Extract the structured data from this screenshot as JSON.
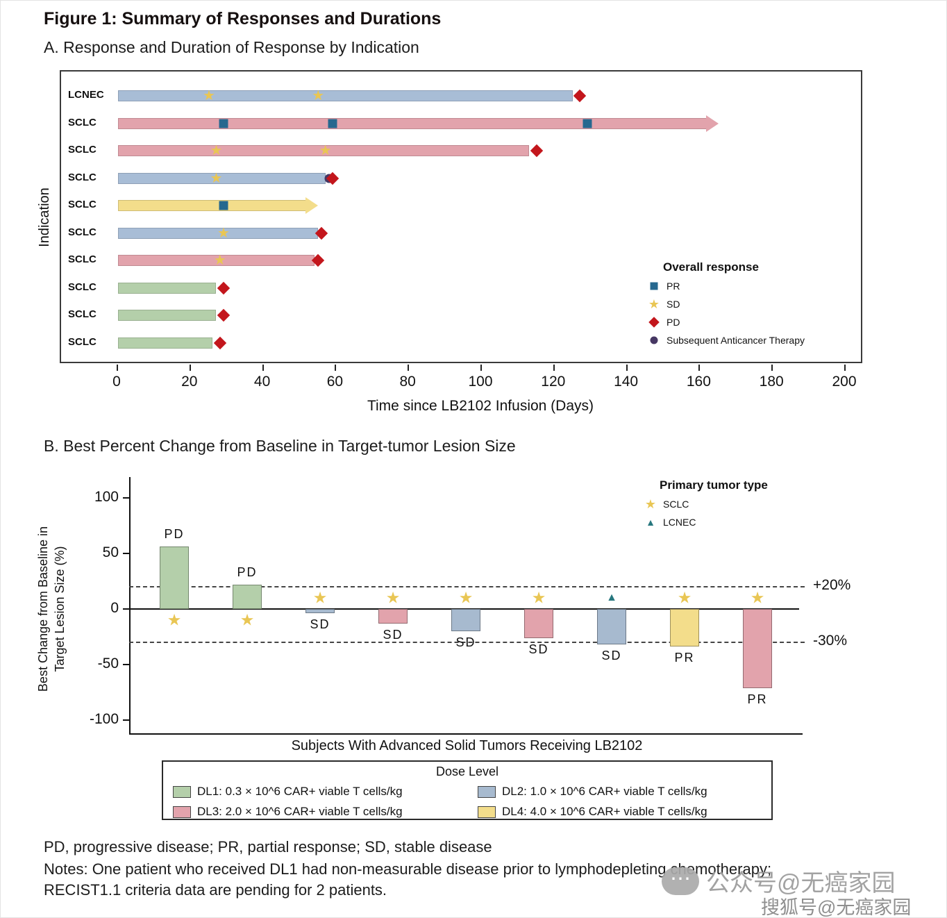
{
  "figure_title": "Figure 1: Summary of Responses and Durations",
  "chart_data": [
    {
      "type": "swimmer",
      "title": "A. Response and Duration of Response by Indication",
      "xlabel": "Time since LB2102 Infusion (Days)",
      "ylabel": "Indication",
      "xlim": [
        0,
        200
      ],
      "xticks": [
        0,
        20,
        40,
        60,
        80,
        100,
        120,
        140,
        160,
        180,
        200
      ],
      "legend_title": "Overall response",
      "legend": [
        {
          "label": "PR",
          "marker": "square",
          "color": "#26688f"
        },
        {
          "label": "SD",
          "marker": "star",
          "color": "#e9c654"
        },
        {
          "label": "PD",
          "marker": "diamond",
          "color": "#c3161c"
        },
        {
          "label": "Subsequent Anticancer Therapy",
          "marker": "circle",
          "color": "#463763"
        }
      ],
      "rows": [
        {
          "indication": "LCNEC",
          "duration": 125,
          "ongoing": false,
          "bar_color": "#a8bdd6",
          "events": [
            {
              "type": "SD",
              "day": 25
            },
            {
              "type": "SD",
              "day": 55
            },
            {
              "type": "PD",
              "day": 127
            }
          ]
        },
        {
          "indication": "SCLC",
          "duration": 162,
          "ongoing": true,
          "bar_color": "#e2a3ac",
          "events": [
            {
              "type": "PR",
              "day": 29
            },
            {
              "type": "PR",
              "day": 59
            },
            {
              "type": "PR",
              "day": 129
            }
          ]
        },
        {
          "indication": "SCLC",
          "duration": 113,
          "ongoing": false,
          "bar_color": "#e2a3ac",
          "events": [
            {
              "type": "SD",
              "day": 27
            },
            {
              "type": "SD",
              "day": 57
            },
            {
              "type": "PD",
              "day": 115
            }
          ]
        },
        {
          "indication": "SCLC",
          "duration": 57,
          "ongoing": false,
          "bar_color": "#a8bdd6",
          "events": [
            {
              "type": "SD",
              "day": 27
            },
            {
              "type": "SACT",
              "day": 58
            },
            {
              "type": "PD",
              "day": 59
            }
          ]
        },
        {
          "indication": "SCLC",
          "duration": 52,
          "ongoing": true,
          "bar_color": "#f3dd8b",
          "events": [
            {
              "type": "PR",
              "day": 29
            }
          ]
        },
        {
          "indication": "SCLC",
          "duration": 55,
          "ongoing": false,
          "bar_color": "#a8bdd6",
          "events": [
            {
              "type": "SD",
              "day": 29
            },
            {
              "type": "PD",
              "day": 56
            }
          ]
        },
        {
          "indication": "SCLC",
          "duration": 54,
          "ongoing": false,
          "bar_color": "#e2a3ac",
          "events": [
            {
              "type": "SD",
              "day": 28
            },
            {
              "type": "PD",
              "day": 55
            }
          ]
        },
        {
          "indication": "SCLC",
          "duration": 27,
          "ongoing": false,
          "bar_color": "#b4cfaa",
          "events": [
            {
              "type": "PD",
              "day": 29
            }
          ]
        },
        {
          "indication": "SCLC",
          "duration": 27,
          "ongoing": false,
          "bar_color": "#b4cfaa",
          "events": [
            {
              "type": "PD",
              "day": 29
            }
          ]
        },
        {
          "indication": "SCLC",
          "duration": 26,
          "ongoing": false,
          "bar_color": "#b4cfaa",
          "events": [
            {
              "type": "PD",
              "day": 28
            }
          ]
        }
      ]
    },
    {
      "type": "bar",
      "title": "B. Best Percent Change from Baseline in Target-tumor Lesion Size",
      "xlabel": "Subjects With Advanced Solid Tumors Receiving LB2102",
      "ylabel": "Best Change from Baseline in Target Lesion Size (%)",
      "ylim": [
        -100,
        100
      ],
      "yticks": [
        100,
        50,
        0,
        -50,
        -100
      ],
      "grid": false,
      "reference_lines": [
        {
          "value": 20,
          "label": "+20%"
        },
        {
          "value": -30,
          "label": "-30%"
        }
      ],
      "legend_title": "Primary tumor type",
      "legend": [
        {
          "label": "SCLC",
          "marker": "star",
          "color": "#e9c654"
        },
        {
          "label": "LCNEC",
          "marker": "triangle",
          "color": "#27777e"
        }
      ],
      "bars": [
        {
          "value": 56,
          "response": "PD",
          "tumor": "SCLC",
          "dose": "DL1",
          "dose_color": "#b4cfaa",
          "marker_value": -10
        },
        {
          "value": 22,
          "response": "PD",
          "tumor": "SCLC",
          "dose": "DL1",
          "dose_color": "#b4cfaa",
          "marker_value": -10
        },
        {
          "value": -4,
          "response": "SD",
          "tumor": "SCLC",
          "dose": "DL2",
          "dose_color": "#a7bacf",
          "marker_value": 10
        },
        {
          "value": -13,
          "response": "SD",
          "tumor": "SCLC",
          "dose": "DL3",
          "dose_color": "#e2a3ac",
          "marker_value": 10
        },
        {
          "value": -20,
          "response": "SD",
          "tumor": "SCLC",
          "dose": "DL2",
          "dose_color": "#a7bacf",
          "marker_value": 10
        },
        {
          "value": -26,
          "response": "SD",
          "tumor": "SCLC",
          "dose": "DL3",
          "dose_color": "#e2a3ac",
          "marker_value": 10
        },
        {
          "value": -32,
          "response": "SD",
          "tumor": "LCNEC",
          "dose": "DL2",
          "dose_color": "#a7bacf",
          "marker_value": 10
        },
        {
          "value": -34,
          "response": "PR",
          "tumor": "SCLC",
          "dose": "DL4",
          "dose_color": "#f3dd8b",
          "marker_value": 10
        },
        {
          "value": -71,
          "response": "PR",
          "tumor": "SCLC",
          "dose": "DL3",
          "dose_color": "#e2a3ac",
          "marker_value": 10
        }
      ]
    }
  ],
  "dose_legend": {
    "title": "Dose Level",
    "items": [
      {
        "label": "DL1: 0.3 × 10^6 CAR+ viable T cells/kg",
        "color": "#b4cfaa"
      },
      {
        "label": "DL2: 1.0 × 10^6 CAR+ viable T cells/kg",
        "color": "#a7bacf"
      },
      {
        "label": "DL3: 2.0 × 10^6 CAR+ viable T cells/kg",
        "color": "#e2a3ac"
      },
      {
        "label": "DL4: 4.0 × 10^6 CAR+ viable T cells/kg",
        "color": "#f3dd8b"
      }
    ]
  },
  "footnotes": [
    "PD, progressive disease; PR, partial response; SD, stable disease",
    "Notes: One patient who received DL1 had non-measurable disease prior to lymphodepleting chemotherapy;",
    "RECIST1.1 criteria data are pending for 2 patients."
  ],
  "watermark": {
    "line1": "公众号@无癌家园",
    "line2": "搜狐号@无癌家园"
  }
}
